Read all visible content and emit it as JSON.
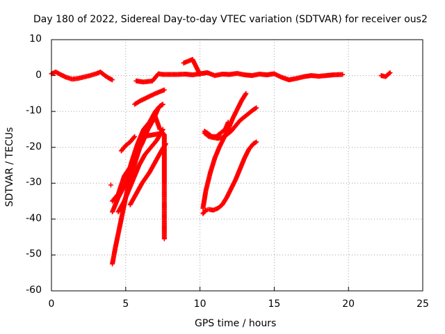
{
  "chart_data": {
    "type": "scatter",
    "title": "Day 180 of 2022, Sidereal Day-to-day VTEC variation (SDTVAR) for receiver ous2",
    "xlabel": "GPS time / hours",
    "ylabel": "SDTVAR / TECUs",
    "xlim": [
      0,
      25
    ],
    "ylim": [
      -60,
      10
    ],
    "xticks": [
      "0",
      "5",
      "10",
      "15",
      "20",
      "25"
    ],
    "yticks": [
      "10",
      "0",
      "-10",
      "-20",
      "-30",
      "-40",
      "-50",
      "-60"
    ],
    "grid": true,
    "marker": "plus",
    "color": "#ff0000",
    "series": [
      {
        "x": [
          0.0,
          0.3,
          0.6,
          1.0,
          1.4,
          1.8,
          2.2,
          2.6,
          3.0,
          3.3,
          3.6,
          3.9,
          4.1,
          5.7,
          6.2,
          6.8,
          7.2,
          7.5,
          8.4,
          9.0,
          9.5,
          10.0,
          10.5,
          11.0,
          11.5,
          12.0,
          12.5,
          13.0,
          13.5,
          14.0,
          14.5,
          15.0,
          15.5,
          16.0,
          16.5,
          17.0,
          17.5,
          18.0,
          18.5,
          19.0,
          19.6,
          22.2,
          22.5,
          22.8,
          8.9,
          9.2,
          9.5,
          10.0
        ],
        "y": [
          0.5,
          1.0,
          0.3,
          -0.5,
          -1.0,
          -0.8,
          -0.4,
          0.0,
          0.5,
          1.0,
          0.0,
          -0.8,
          -1.2,
          -1.5,
          -1.8,
          -1.5,
          0.5,
          0.3,
          0.3,
          0.4,
          0.2,
          0.5,
          0.8,
          0.0,
          0.4,
          0.3,
          0.6,
          0.2,
          0.0,
          0.4,
          0.2,
          0.5,
          -0.5,
          -1.2,
          -0.8,
          -0.3,
          0.0,
          -0.2,
          0.0,
          0.2,
          0.3,
          0.0,
          -0.3,
          0.8,
          3.5,
          4.0,
          4.5,
          0.3
        ]
      },
      {
        "x": [
          4.1,
          4.3,
          4.6,
          4.9,
          5.2,
          5.5,
          5.8,
          6.2,
          6.6,
          7.0,
          7.3,
          7.5
        ],
        "y": [
          -52.5,
          -48,
          -42,
          -36,
          -30,
          -26,
          -22,
          -17,
          -13,
          -10,
          -8.5,
          -8
        ]
      },
      {
        "x": [
          4.1,
          4.5,
          5.0,
          5.4,
          5.8,
          6.2,
          6.6,
          7.0,
          7.3
        ],
        "y": [
          -38,
          -34,
          -30,
          -24,
          -19,
          -15,
          -13,
          -11.5,
          -15
        ]
      },
      {
        "x": [
          4.1,
          4.5,
          4.9,
          5.3,
          5.7,
          6.1,
          6.5,
          6.9,
          7.2,
          7.5
        ],
        "y": [
          -35,
          -33,
          -28,
          -25.5,
          -22,
          -19,
          -15,
          -12,
          -9,
          -8
        ]
      },
      {
        "x": [
          4.5,
          4.9,
          5.2,
          5.6,
          5.9,
          6.3,
          6.7,
          7.1,
          7.5
        ],
        "y": [
          -38,
          -35,
          -32,
          -28,
          -25,
          -22,
          -20,
          -18,
          -15
        ]
      },
      {
        "x": [
          5.3,
          5.7,
          6.1,
          6.6,
          7.0,
          7.4,
          7.7
        ],
        "y": [
          -36,
          -33,
          -30,
          -27,
          -24,
          -21,
          -19
        ]
      },
      {
        "x": [
          4.7,
          5.0,
          5.3,
          5.6
        ],
        "y": [
          -21,
          -19.5,
          -18.5,
          -17
        ]
      },
      {
        "x": [
          5.6,
          6.0,
          6.5,
          7.0,
          7.3,
          7.6
        ],
        "y": [
          -8,
          -7,
          -6,
          -5,
          -4.5,
          -4
        ]
      },
      {
        "x": [
          4.0,
          6.2,
          7.5,
          7.6,
          7.6,
          7.6,
          7.6,
          7.6
        ],
        "y": [
          -30.5,
          -17,
          -16,
          -16.5,
          -34,
          -35,
          -38,
          -45.5
        ]
      },
      {
        "x": [
          10.2,
          10.4,
          10.6,
          10.9,
          11.2,
          11.5,
          11.8,
          12.1,
          12.4,
          12.7,
          13.0,
          13.3,
          13.6,
          13.8
        ],
        "y": [
          -38.5,
          -37.5,
          -37.3,
          -37.5,
          -37,
          -36,
          -34,
          -31.5,
          -29,
          -26,
          -23,
          -20.5,
          -19,
          -18.5
        ]
      },
      {
        "x": [
          10.3,
          10.6,
          10.9,
          11.2,
          11.5,
          11.8,
          12.1,
          12.4,
          12.7,
          13.0,
          13.3,
          13.6,
          13.8
        ],
        "y": [
          -16,
          -17,
          -17.3,
          -17.5,
          -17.3,
          -16.5,
          -15.5,
          -14,
          -12.5,
          -11.5,
          -10.5,
          -9.5,
          -9
        ]
      },
      {
        "x": [
          10.2,
          10.4,
          10.7,
          11.0,
          11.3,
          11.6,
          11.9,
          12.2,
          12.5,
          12.8,
          13.1
        ],
        "y": [
          -37,
          -32,
          -27,
          -23,
          -20,
          -17.5,
          -15,
          -12,
          -9.5,
          -7,
          -5
        ]
      },
      {
        "x": [
          10.3,
          10.5,
          10.8,
          11.1,
          11.4,
          11.7,
          11.9
        ],
        "y": [
          -15.5,
          -16,
          -17,
          -17,
          -16,
          -15,
          -13
        ]
      }
    ]
  }
}
